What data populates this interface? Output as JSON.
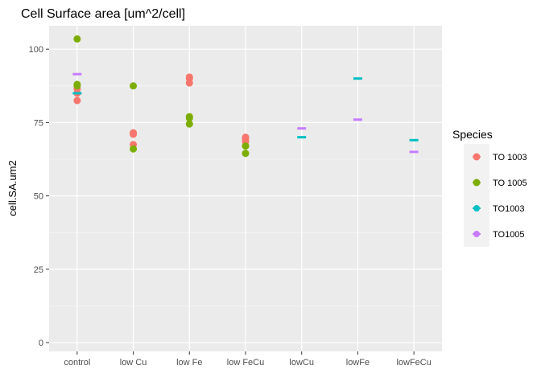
{
  "chart_data": {
    "type": "scatter",
    "title": "Cell Surface area [um^2/cell]",
    "xlabel": "",
    "ylabel": "cell.SA.um2",
    "categories": [
      "control",
      "low Cu",
      "low Fe",
      "low FeCu",
      "lowCu",
      "lowFe",
      "lowFeCu"
    ],
    "ylim": [
      -3,
      108
    ],
    "yticks": [
      0,
      25,
      50,
      75,
      100
    ],
    "grid": true,
    "legend_title": "Species",
    "legend_position": "right",
    "series": [
      {
        "name": "TO 1003",
        "color": "#F8766D",
        "marker": "circle",
        "points": [
          {
            "x": "control",
            "y": 82.5
          },
          {
            "x": "control",
            "y": 85.0
          },
          {
            "x": "control",
            "y": 86.5
          },
          {
            "x": "low Cu",
            "y": 67.5
          },
          {
            "x": "low Cu",
            "y": 71.0
          },
          {
            "x": "low Cu",
            "y": 71.5
          },
          {
            "x": "low Fe",
            "y": 88.5
          },
          {
            "x": "low Fe",
            "y": 90.0
          },
          {
            "x": "low Fe",
            "y": 90.5
          },
          {
            "x": "low FeCu",
            "y": 68.5
          },
          {
            "x": "low FeCu",
            "y": 69.5
          },
          {
            "x": "low FeCu",
            "y": 70.0
          }
        ]
      },
      {
        "name": "TO 1005",
        "color": "#7CAE00",
        "marker": "circle",
        "points": [
          {
            "x": "control",
            "y": 103.5
          },
          {
            "x": "control",
            "y": 88.0
          },
          {
            "x": "control",
            "y": 87.5
          },
          {
            "x": "low Cu",
            "y": 87.5
          },
          {
            "x": "low Cu",
            "y": 66.0
          },
          {
            "x": "low Fe",
            "y": 77.0
          },
          {
            "x": "low Fe",
            "y": 76.5
          },
          {
            "x": "low Fe",
            "y": 74.5
          },
          {
            "x": "low FeCu",
            "y": 67.0
          },
          {
            "x": "low FeCu",
            "y": 64.5
          }
        ]
      },
      {
        "name": "TO1003",
        "color": "#00BFC4",
        "marker": "dash",
        "points": [
          {
            "x": "control",
            "y": 85.0
          },
          {
            "x": "lowCu",
            "y": 70.0
          },
          {
            "x": "lowFe",
            "y": 90.0
          },
          {
            "x": "lowFeCu",
            "y": 69.0
          }
        ]
      },
      {
        "name": "TO1005",
        "color": "#C77CFF",
        "marker": "dash",
        "points": [
          {
            "x": "control",
            "y": 91.5
          },
          {
            "x": "lowCu",
            "y": 73.0
          },
          {
            "x": "lowFe",
            "y": 76.0
          },
          {
            "x": "lowFeCu",
            "y": 65.0
          }
        ]
      }
    ]
  }
}
